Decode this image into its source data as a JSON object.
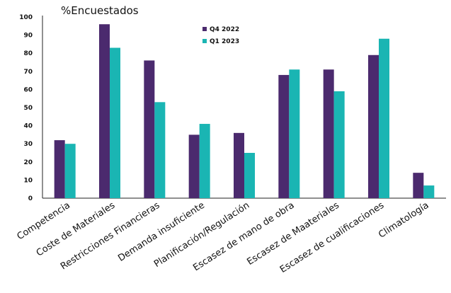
{
  "chart_data": {
    "type": "bar",
    "unit_label": "%Encuestados",
    "categories": [
      "Competencia",
      "Coste de Materiales",
      "Restricciones Financieras",
      "Demanda insuficiente",
      "Planificación/Regulación",
      "Escasez de mano de obra",
      "Escasez de Maateriales",
      "Escasez de cualificaciones",
      "Climatología"
    ],
    "series": [
      {
        "name": "Q4 2022",
        "color": "#4b2a6e",
        "values": [
          32,
          96,
          76,
          35,
          36,
          68,
          71,
          79,
          14
        ]
      },
      {
        "name": "Q1 2023",
        "color": "#1ab5b3",
        "values": [
          30,
          83,
          53,
          41,
          25,
          71,
          59,
          88,
          7
        ]
      }
    ],
    "yticks": [
      "0",
      "10",
      "20",
      "30",
      "40",
      "50",
      "60",
      "70",
      "80",
      "90",
      "100"
    ],
    "ylim": [
      0,
      100
    ],
    "grid": false,
    "legend_position": "top-center"
  }
}
